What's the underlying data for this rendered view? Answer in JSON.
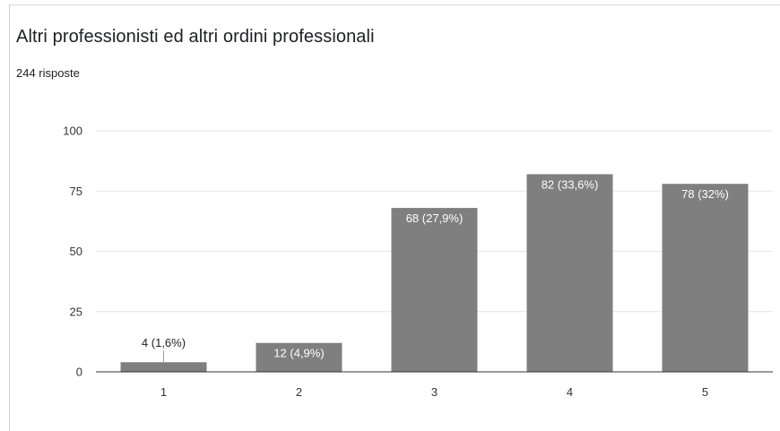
{
  "title": "Altri professionisti ed altri ordini professionali",
  "subtitle": "244 risposte",
  "colors": {
    "bar": "#7f7f7f",
    "grid": "#e6e6e6",
    "axis": "#333333"
  },
  "chart_data": {
    "type": "bar",
    "categories": [
      "1",
      "2",
      "3",
      "4",
      "5"
    ],
    "values": [
      4,
      12,
      68,
      82,
      78
    ],
    "data_labels": [
      "4 (1,6%)",
      "12 (4,9%)",
      "68 (27,9%)",
      "82 (33,6%)",
      "78 (32%)"
    ],
    "y_ticks": [
      "0",
      "25",
      "50",
      "75",
      "100"
    ],
    "ylim": [
      0,
      100
    ],
    "grid": true,
    "legend": "none"
  }
}
